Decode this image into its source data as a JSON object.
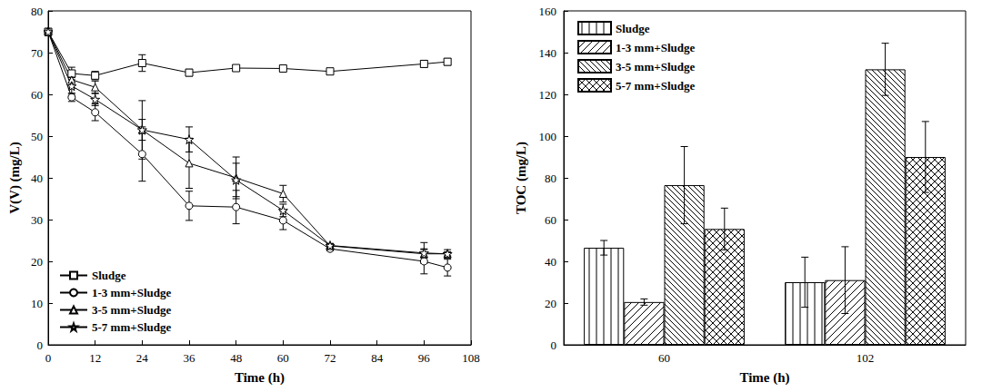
{
  "chart_data": [
    {
      "type": "line",
      "x_label": "Time (h)",
      "y_label": "V(V) (mg/L)",
      "x": [
        0,
        6,
        12,
        24,
        36,
        48,
        60,
        72,
        96,
        102
      ],
      "xlim": [
        0,
        108
      ],
      "xticks": [
        0,
        12,
        24,
        36,
        48,
        60,
        72,
        84,
        96,
        108
      ],
      "ylim": [
        0,
        80
      ],
      "yticks": [
        0,
        10,
        20,
        30,
        40,
        50,
        60,
        70,
        80
      ],
      "legend": "lower left",
      "grid": false,
      "series": [
        {
          "name": "Sludge",
          "color": "#000000",
          "marker": "square",
          "values": [
            75,
            65,
            64.5,
            67.5,
            65.2,
            66.3,
            66.2,
            65.5,
            67.3,
            67.8
          ],
          "errors": [
            0,
            1.5,
            1,
            2,
            0.8,
            0.6,
            0.5,
            0.5,
            0.8,
            0.8
          ]
        },
        {
          "name": "1-3 mm+Sludge",
          "color": "#000000",
          "marker": "circle",
          "values": [
            75,
            59.3,
            55.7,
            45.7,
            33.3,
            33,
            29.8,
            23,
            20,
            18.5
          ],
          "errors": [
            0,
            1,
            2,
            6.5,
            3.5,
            4,
            2.2,
            0.5,
            3,
            2
          ]
        },
        {
          "name": "3-5 mm+Sludge",
          "color": "#000000",
          "marker": "triangle",
          "values": [
            75,
            63.5,
            61.7,
            51.5,
            43.5,
            40,
            36.2,
            23.7,
            21.8,
            21.8
          ],
          "errors": [
            0,
            2,
            1.5,
            7,
            6,
            5,
            2,
            0.5,
            1,
            0.5
          ]
        },
        {
          "name": "5-7 mm+Sludge",
          "color": "#000000",
          "marker": "star",
          "values": [
            75,
            62,
            58.8,
            51.5,
            49.2,
            39.5,
            32.2,
            23.8,
            22,
            21.8
          ],
          "errors": [
            0,
            2,
            1.5,
            2.5,
            3,
            4,
            1.5,
            0.5,
            2.5,
            1
          ]
        }
      ]
    },
    {
      "type": "bar",
      "x_label": "Time (h)",
      "y_label": "TOC (mg/L)",
      "categories": [
        "60",
        "102"
      ],
      "ylim": [
        0,
        160
      ],
      "yticks": [
        0,
        20,
        40,
        60,
        80,
        100,
        120,
        140,
        160
      ],
      "legend": "upper left",
      "grid": false,
      "series": [
        {
          "name": "Sludge",
          "color": "#000000",
          "values": [
            46.5,
            30
          ],
          "errors": [
            3.5,
            12
          ]
        },
        {
          "name": "1-3 mm+Sludge",
          "color": "#000000",
          "values": [
            20.5,
            31
          ],
          "errors": [
            1.5,
            16
          ]
        },
        {
          "name": "3-5 mm+Sludge",
          "color": "#000000",
          "values": [
            76.5,
            132
          ],
          "errors": [
            18.5,
            12.5
          ]
        },
        {
          "name": "5-7 mm+Sludge",
          "color": "#000000",
          "values": [
            55.5,
            90
          ],
          "errors": [
            10,
            17
          ]
        }
      ]
    }
  ]
}
